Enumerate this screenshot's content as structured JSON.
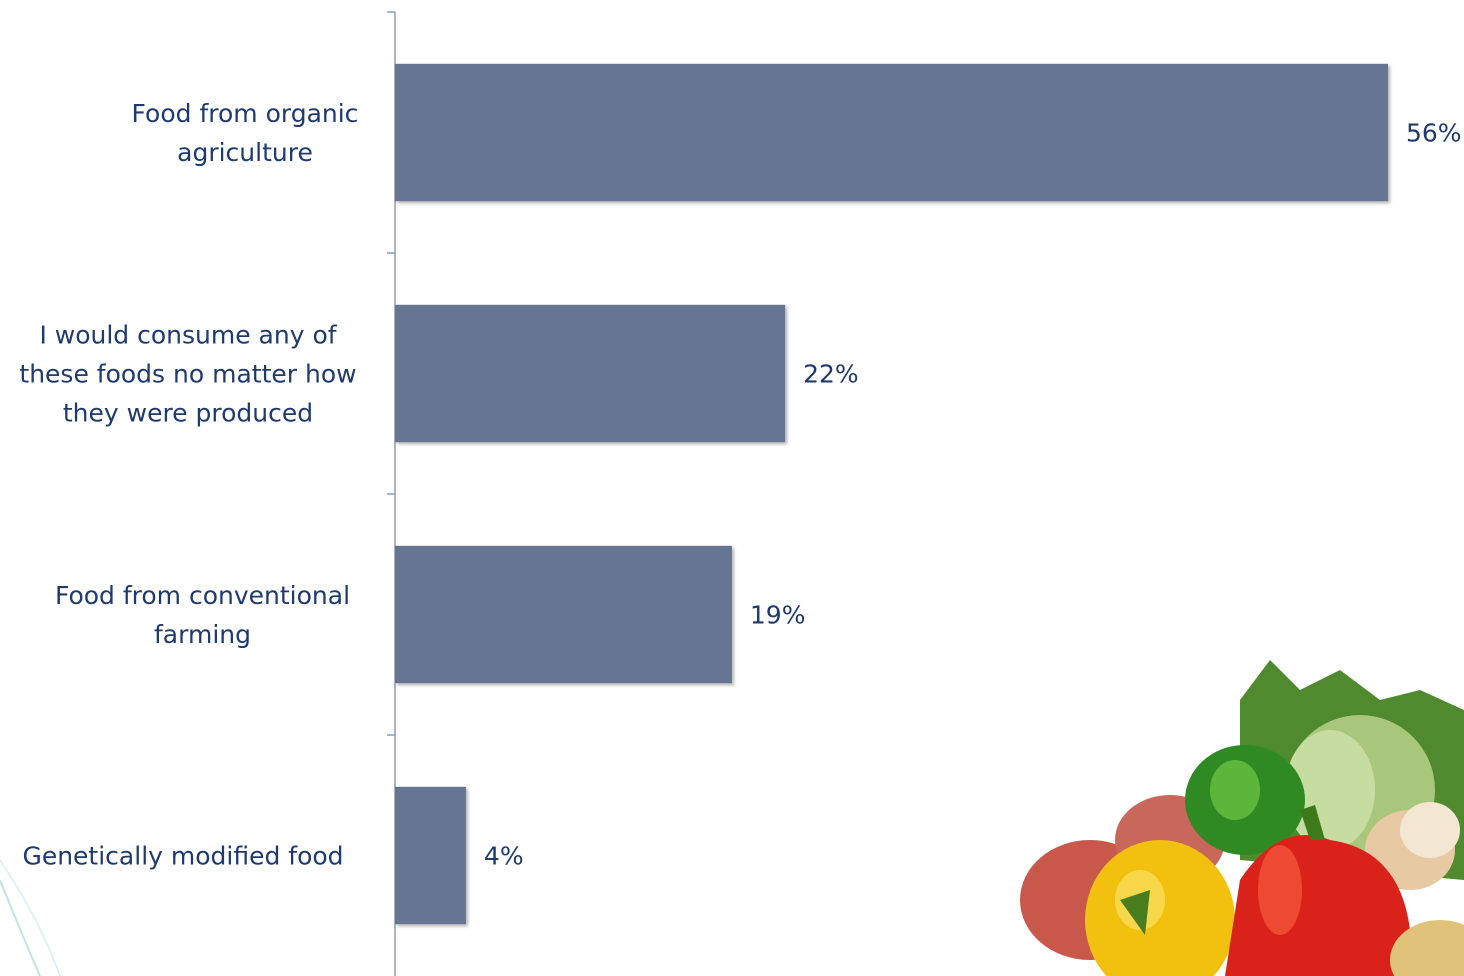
{
  "chart_data": {
    "type": "bar",
    "orientation": "horizontal",
    "categories": [
      "Food from organic agriculture",
      "I would consume any of these foods no matter how they were produced",
      "Food from conventional farming",
      "Genetically modified food"
    ],
    "values": [
      56,
      22,
      19,
      4
    ],
    "value_labels": [
      "56%",
      "22%",
      "19%",
      "4%"
    ],
    "color": "#667592"
  }
}
